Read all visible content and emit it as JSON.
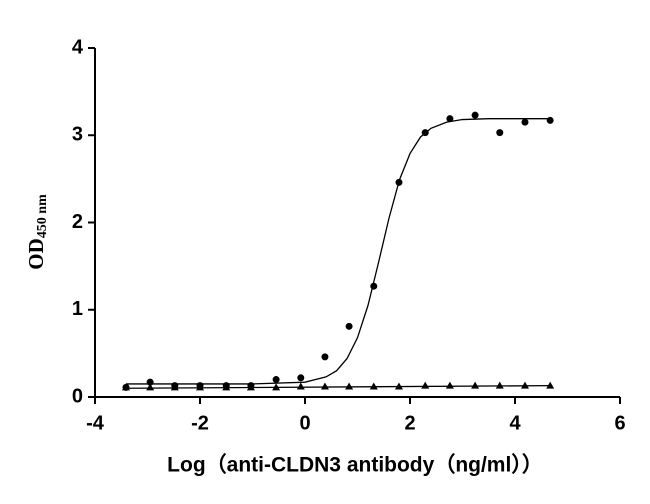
{
  "chart_data": {
    "type": "scatter",
    "xlabel": "Log（anti-CLDN3 antibody（ng/ml））",
    "ylabel": "OD",
    "ylabel_subscript": "450 nm",
    "xlim": [
      -4,
      6
    ],
    "xticks": [
      -4,
      -2,
      0,
      2,
      4,
      6
    ],
    "ylim": [
      0,
      4
    ],
    "yticks": [
      0,
      1,
      2,
      3,
      4
    ],
    "series": [
      {
        "mode": "markers",
        "marker": "circle",
        "color": "#000000",
        "x": [
          -3.41,
          -2.95,
          -2.48,
          -2.0,
          -1.5,
          -1.03,
          -0.55,
          -0.08,
          0.38,
          0.84,
          1.31,
          1.79,
          2.29,
          2.76,
          3.24,
          3.71,
          4.19,
          4.67
        ],
        "values": [
          0.11,
          0.17,
          0.13,
          0.13,
          0.13,
          0.13,
          0.2,
          0.22,
          0.46,
          0.81,
          1.27,
          2.46,
          3.03,
          3.19,
          3.23,
          3.03,
          3.15,
          3.17
        ]
      },
      {
        "mode": "markers",
        "marker": "triangle",
        "color": "#000000",
        "x": [
          -3.41,
          -2.95,
          -2.48,
          -2.0,
          -1.5,
          -1.03,
          -0.55,
          -0.08,
          0.38,
          0.84,
          1.31,
          1.79,
          2.29,
          2.76,
          3.24,
          3.71,
          4.19,
          4.67
        ],
        "values": [
          0.11,
          0.11,
          0.11,
          0.11,
          0.11,
          0.11,
          0.11,
          0.12,
          0.12,
          0.12,
          0.12,
          0.12,
          0.13,
          0.13,
          0.13,
          0.13,
          0.13,
          0.13
        ]
      },
      {
        "mode": "line",
        "color": "#000000",
        "x": [
          -3.41,
          -1.0,
          0.0,
          0.4,
          0.6,
          0.8,
          1.0,
          1.2,
          1.4,
          1.6,
          1.8,
          2.0,
          2.2,
          2.4,
          2.7,
          3.0,
          3.5,
          4.67
        ],
        "values": [
          0.15,
          0.15,
          0.17,
          0.23,
          0.3,
          0.44,
          0.68,
          1.05,
          1.54,
          2.05,
          2.49,
          2.79,
          2.98,
          3.08,
          3.15,
          3.18,
          3.19,
          3.19
        ]
      },
      {
        "mode": "line",
        "color": "#000000",
        "x": [
          -3.41,
          4.67
        ],
        "values": [
          0.1,
          0.13
        ]
      }
    ]
  }
}
